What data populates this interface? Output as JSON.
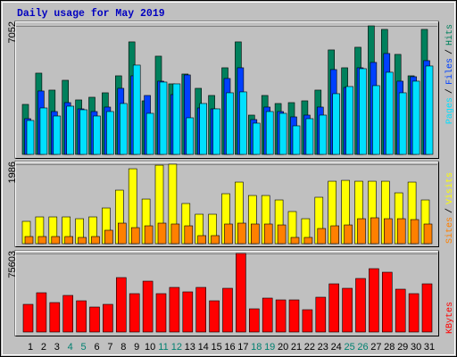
{
  "legend_separator": "/",
  "chart_data": [
    {
      "type": "bar",
      "title": "Daily usage for May 2019",
      "title_color": "#0000c0",
      "ylim": [
        0,
        7052
      ],
      "yticks": [
        7052
      ],
      "series": [
        {
          "name": "Hits",
          "color": "#00805c",
          "values": [
            2744,
            4459,
            3528,
            4067,
            2989,
            3136,
            3381,
            4312,
            6174,
            2940,
            5390,
            3871,
            4410,
            3626,
            3234,
            4753,
            6174,
            2156,
            3234,
            2793,
            2842,
            2940,
            3528,
            5733,
            4753,
            5880,
            7052,
            6860,
            5488,
            4312,
            6860
          ]
        },
        {
          "name": "Files",
          "color": "#0040ff",
          "values": [
            1960,
            3479,
            2352,
            2842,
            2499,
            2352,
            2597,
            3626,
            4312,
            3234,
            4018,
            3283,
            4361,
            2548,
            2499,
            4165,
            4753,
            1911,
            2597,
            2352,
            2058,
            2156,
            2597,
            4655,
            3675,
            4753,
            5047,
            5537,
            4018,
            4263,
            5145
          ]
        },
        {
          "name": "Pages",
          "color": "#00e0ff",
          "values": [
            1862,
            2548,
            2107,
            2646,
            2450,
            2107,
            2352,
            2793,
            4900,
            2254,
            3969,
            3871,
            2009,
            2793,
            2499,
            3381,
            3430,
            1715,
            2352,
            2254,
            1568,
            1960,
            2156,
            3332,
            3724,
            4704,
            3773,
            4508,
            3381,
            4018,
            4851
          ]
        }
      ]
    },
    {
      "type": "bar",
      "ylim": [
        0,
        1986
      ],
      "yticks": [
        1986
      ],
      "series": [
        {
          "name": "Visits",
          "color": "#ffff00",
          "values": [
            558,
            669,
            669,
            669,
            624,
            669,
            892,
            1338,
            1873,
            1115,
            1962,
            1986,
            1004,
            736,
            736,
            1249,
            1539,
            1204,
            1204,
            1093,
            803,
            624,
            1160,
            1561,
            1583,
            1561,
            1561,
            1561,
            1271,
            1539,
            1093
          ]
        },
        {
          "name": "Sites",
          "color": "#ff8000",
          "values": [
            178,
            178,
            178,
            178,
            156,
            178,
            335,
            513,
            401,
            446,
            513,
            491,
            446,
            201,
            201,
            491,
            513,
            491,
            491,
            468,
            156,
            156,
            379,
            446,
            468,
            624,
            647,
            624,
            624,
            602,
            491
          ]
        }
      ]
    },
    {
      "type": "bar",
      "ylim": [
        0,
        75603
      ],
      "yticks": [
        75603
      ],
      "categories": [
        "1",
        "2",
        "3",
        "4",
        "5",
        "6",
        "7",
        "8",
        "9",
        "10",
        "11",
        "12",
        "13",
        "14",
        "15",
        "16",
        "17",
        "18",
        "19",
        "20",
        "21",
        "22",
        "23",
        "24",
        "25",
        "26",
        "27",
        "28",
        "29",
        "30",
        "31"
      ],
      "weekend": [
        "4",
        "5",
        "11",
        "12",
        "18",
        "19",
        "25",
        "26"
      ],
      "weekend_color": "#008070",
      "series": [
        {
          "name": "KBytes",
          "color": "#ff0000",
          "values": [
            26629,
            37796,
            28347,
            35219,
            30065,
            24052,
            26629,
            52399,
            36937,
            48963,
            36937,
            42950,
            38655,
            42950,
            30065,
            42091,
            75603,
            22334,
            32642,
            30924,
            30924,
            21475,
            33501,
            46386,
            42091,
            51540,
            60989,
            57553,
            41232,
            36937,
            46386
          ]
        }
      ]
    }
  ]
}
